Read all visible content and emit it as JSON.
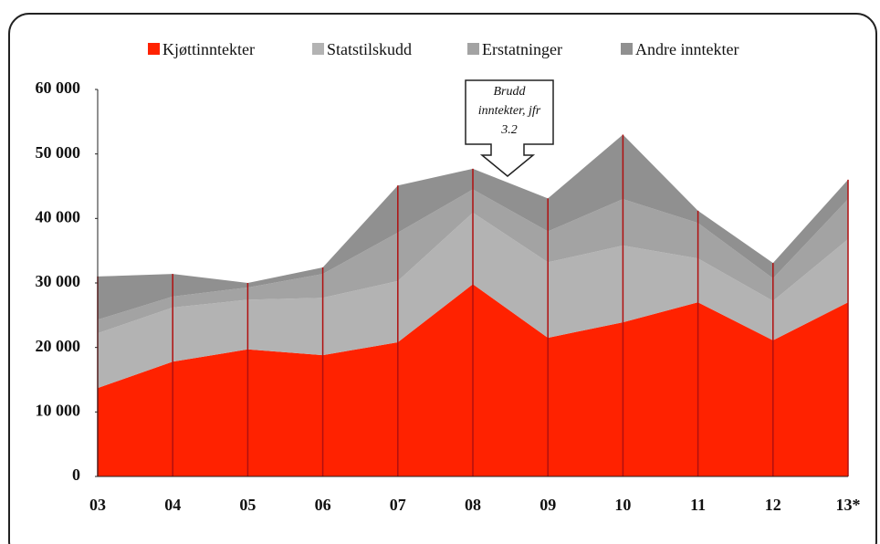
{
  "chart_data": {
    "type": "stacked_area",
    "categories": [
      "03",
      "04",
      "05",
      "06",
      "07",
      "08",
      "09",
      "10",
      "11",
      "12",
      "13*"
    ],
    "series": [
      {
        "name": "Kjøttinntekter",
        "color": "#ff2200",
        "values": [
          13700,
          17800,
          19700,
          18800,
          20800,
          29800,
          21500,
          23900,
          27000,
          21100,
          27000
        ]
      },
      {
        "name": "Statstilskudd",
        "color": "#b3b3b3",
        "values": [
          8500,
          8400,
          7700,
          8900,
          9500,
          11100,
          11700,
          11900,
          6800,
          6100,
          9800
        ]
      },
      {
        "name": "Erstatninger",
        "color": "#a3a3a3",
        "values": [
          2100,
          1700,
          1900,
          3700,
          7500,
          3600,
          4800,
          7200,
          5500,
          3500,
          6200
        ]
      },
      {
        "name": "Andre inntekter",
        "color": "#909090",
        "values": [
          6700,
          3500,
          700,
          1000,
          7300,
          3200,
          5100,
          10000,
          1900,
          2400,
          3000
        ]
      }
    ],
    "ylim": [
      0,
      60000
    ],
    "yticks": [
      0,
      {
        "value": 10000,
        "label": "10 000"
      },
      {
        "value": 20000,
        "label": "20 000"
      },
      {
        "value": 30000,
        "label": "30 000"
      },
      {
        "value": 40000,
        "label": "40 000"
      },
      {
        "value": 50000,
        "label": "50 000"
      },
      {
        "value": 60000,
        "label": "60 000"
      }
    ],
    "annotation": [
      "Brudd",
      "inntekter, jfr",
      "3.2"
    ],
    "drop_line_color": "#b01010"
  }
}
